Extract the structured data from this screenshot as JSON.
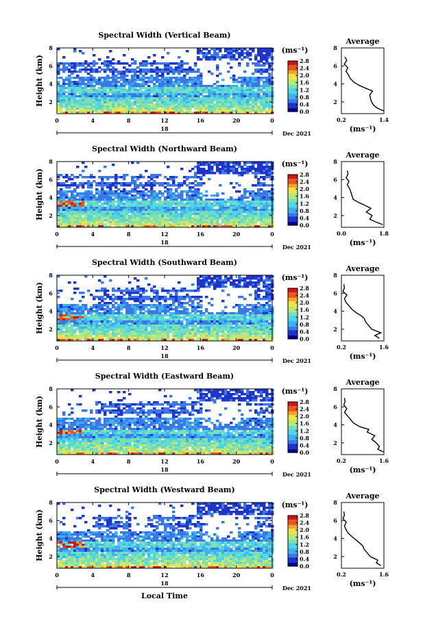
{
  "figure": {
    "x_axis_label": "Local Time",
    "date_label": "Dec 2021",
    "day_label": "18",
    "y_axis_label": "Height (km)",
    "colorbar_unit": "(ms⁻¹)",
    "avg_title": "Average",
    "avg_unit": "(ms⁻¹)"
  },
  "chart_data": [
    {
      "type": "heatmap",
      "title": "Spectral Width (Vertical Beam)",
      "xlabel": "",
      "ylabel": "Height (km)",
      "x_ticks": [
        "0",
        "4",
        "8",
        "12",
        "16",
        "20",
        "0"
      ],
      "xlim": [
        0,
        24
      ],
      "y_ticks": [
        "2",
        "4",
        "6",
        "8"
      ],
      "ylim": [
        0.7,
        8.0
      ],
      "colorbar": {
        "label": "(ms⁻¹)",
        "ticks": [
          "0.0",
          "0.4",
          "0.8",
          "1.2",
          "1.6",
          "2.0",
          "2.4",
          "2.8"
        ],
        "range": [
          0.0,
          2.8
        ]
      },
      "profile": {
        "title": "Average",
        "xlabel": "(ms⁻¹)",
        "x_ticks": [
          "0.2",
          "1.4"
        ],
        "xlim": [
          0.2,
          1.4
        ],
        "height": [
          1.0,
          1.3,
          1.6,
          2.0,
          2.4,
          2.8,
          3.2,
          3.5,
          3.8,
          4.2,
          4.6,
          5.0,
          5.4,
          5.8,
          6.2,
          6.6,
          7.0
        ],
        "value": [
          1.4,
          1.22,
          1.12,
          1.05,
          1.02,
          1.0,
          1.08,
          0.9,
          0.72,
          0.55,
          0.45,
          0.4,
          0.33,
          0.38,
          0.28,
          0.35,
          0.3
        ]
      }
    },
    {
      "type": "heatmap",
      "title": "Spectral Width (Northward Beam)",
      "xlabel": "",
      "ylabel": "Height (km)",
      "x_ticks": [
        "0",
        "4",
        "8",
        "12",
        "16",
        "20",
        "0"
      ],
      "xlim": [
        0,
        24
      ],
      "y_ticks": [
        "2",
        "4",
        "6",
        "8"
      ],
      "ylim": [
        0.7,
        8.0
      ],
      "colorbar": {
        "label": "(ms⁻¹)",
        "ticks": [
          "0.0",
          "0.4",
          "0.8",
          "1.2",
          "1.6",
          "2.0",
          "2.4",
          "2.8"
        ],
        "range": [
          0.0,
          2.8
        ]
      },
      "profile": {
        "title": "Average",
        "xlabel": "(ms⁻¹)",
        "x_ticks": [
          "0.0",
          "1.8"
        ],
        "xlim": [
          0.0,
          1.8
        ],
        "height": [
          1.0,
          1.3,
          1.6,
          2.0,
          2.4,
          2.8,
          3.2,
          3.5,
          3.8,
          4.2,
          4.6,
          5.0,
          5.4,
          5.8,
          6.2,
          6.6,
          7.0
        ],
        "value": [
          1.75,
          1.45,
          1.2,
          1.3,
          1.05,
          1.25,
          0.95,
          0.7,
          0.5,
          0.45,
          0.4,
          0.35,
          0.25,
          0.32,
          0.2,
          0.28,
          0.25
        ]
      }
    },
    {
      "type": "heatmap",
      "title": "Spectral Width (Southward Beam)",
      "xlabel": "",
      "ylabel": "Height (km)",
      "x_ticks": [
        "0",
        "4",
        "8",
        "12",
        "16",
        "20",
        "0"
      ],
      "xlim": [
        0,
        24
      ],
      "y_ticks": [
        "2",
        "4",
        "6",
        "8"
      ],
      "ylim": [
        0.7,
        8.0
      ],
      "colorbar": {
        "label": "(ms⁻¹)",
        "ticks": [
          "0.0",
          "0.4",
          "0.8",
          "1.2",
          "1.6",
          "2.0",
          "2.4",
          "2.8"
        ],
        "range": [
          0.0,
          2.8
        ]
      },
      "profile": {
        "title": "Average",
        "xlabel": "(ms⁻¹)",
        "x_ticks": [
          "0.2",
          "1.6"
        ],
        "xlim": [
          0.2,
          1.6
        ],
        "height": [
          1.0,
          1.3,
          1.6,
          2.0,
          2.4,
          2.8,
          3.2,
          3.5,
          3.8,
          4.2,
          4.6,
          5.0,
          5.4,
          5.8,
          6.2,
          6.6,
          7.0
        ],
        "value": [
          1.45,
          1.3,
          1.5,
          1.2,
          1.1,
          1.0,
          0.95,
          0.85,
          0.7,
          0.55,
          0.45,
          0.35,
          0.3,
          0.38,
          0.25,
          0.3,
          0.28
        ]
      }
    },
    {
      "type": "heatmap",
      "title": "Spectral Width (Eastward Beam)",
      "xlabel": "",
      "ylabel": "Height (km)",
      "x_ticks": [
        "0",
        "4",
        "8",
        "12",
        "16",
        "20",
        "0"
      ],
      "xlim": [
        0,
        24
      ],
      "y_ticks": [
        "2",
        "4",
        "6",
        "8"
      ],
      "ylim": [
        0.7,
        8.0
      ],
      "colorbar": {
        "label": "(ms⁻¹)",
        "ticks": [
          "0.0",
          "0.4",
          "0.8",
          "1.2",
          "1.6",
          "2.0",
          "2.4",
          "2.8"
        ],
        "range": [
          0.0,
          2.8
        ]
      },
      "profile": {
        "title": "Average",
        "xlabel": "(ms⁻¹)",
        "x_ticks": [
          "0.2",
          "1.6"
        ],
        "xlim": [
          0.2,
          1.6
        ],
        "height": [
          1.0,
          1.3,
          1.6,
          2.0,
          2.4,
          2.8,
          3.2,
          3.5,
          3.8,
          4.2,
          4.6,
          5.0,
          5.4,
          5.8,
          6.2,
          6.6,
          7.0
        ],
        "value": [
          1.58,
          1.4,
          1.45,
          1.35,
          1.2,
          1.3,
          1.05,
          1.1,
          0.8,
          0.6,
          0.5,
          0.4,
          0.3,
          0.38,
          0.28,
          0.32,
          0.3
        ]
      }
    },
    {
      "type": "heatmap",
      "title": "Spectral Width (Westward Beam)",
      "xlabel": "Local Time",
      "ylabel": "Height (km)",
      "x_ticks": [
        "0",
        "4",
        "8",
        "12",
        "16",
        "20",
        "0"
      ],
      "xlim": [
        0,
        24
      ],
      "y_ticks": [
        "2",
        "4",
        "6",
        "8"
      ],
      "ylim": [
        0.7,
        8.0
      ],
      "colorbar": {
        "label": "(ms⁻¹)",
        "ticks": [
          "0.0",
          "0.4",
          "0.8",
          "1.2",
          "1.6",
          "2.0",
          "2.4",
          "2.8"
        ],
        "range": [
          0.0,
          2.8
        ]
      },
      "profile": {
        "title": "Average",
        "xlabel": "(ms⁻¹)",
        "x_ticks": [
          "0.2",
          "1.6"
        ],
        "xlim": [
          0.2,
          1.6
        ],
        "height": [
          1.0,
          1.3,
          1.6,
          2.0,
          2.4,
          2.8,
          3.2,
          3.5,
          3.8,
          4.2,
          4.6,
          5.0,
          5.4,
          5.8,
          6.2,
          6.6,
          7.0
        ],
        "value": [
          1.5,
          1.35,
          1.4,
          1.15,
          1.05,
          0.95,
          0.9,
          0.8,
          0.7,
          0.55,
          0.42,
          0.35,
          0.3,
          0.36,
          0.25,
          0.3,
          0.28
        ]
      }
    }
  ],
  "colormap": [
    "#00008b",
    "#1f35c9",
    "#3a78e8",
    "#3fb0f0",
    "#4fd6e6",
    "#7de0b0",
    "#b9e87a",
    "#f2e34a",
    "#f4a42c",
    "#e9561e",
    "#c8181a"
  ]
}
